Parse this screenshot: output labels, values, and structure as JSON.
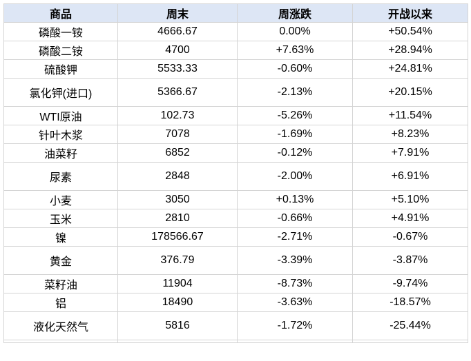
{
  "chart_data": {
    "type": "table",
    "columns": [
      "商品",
      "周末",
      "周涨跌",
      "开战以来"
    ],
    "rows": [
      {
        "name": "磷酸一铵",
        "close": "4666.67",
        "week": "0.00%",
        "since": "+50.54%"
      },
      {
        "name": "磷酸二铵",
        "close": "4700",
        "week": "+7.63%",
        "since": "+28.94%"
      },
      {
        "name": "硫酸钾",
        "close": "5533.33",
        "week": "-0.60%",
        "since": "+24.81%"
      },
      {
        "name": "氯化钾(进口)",
        "close": "5366.67",
        "week": "-2.13%",
        "since": "+20.15%"
      },
      {
        "name": "WTI原油",
        "close": "102.73",
        "week": "-5.26%",
        "since": "+11.54%"
      },
      {
        "name": "针叶木浆",
        "close": "7078",
        "week": "-1.69%",
        "since": "+8.23%"
      },
      {
        "name": "油菜籽",
        "close": "6852",
        "week": "-0.12%",
        "since": "+7.91%"
      },
      {
        "name": "尿素",
        "close": "2848",
        "week": "-2.00%",
        "since": "+6.91%"
      },
      {
        "name": "小麦",
        "close": "3050",
        "week": "+0.13%",
        "since": "+5.10%"
      },
      {
        "name": "玉米",
        "close": "2810",
        "week": "-0.66%",
        "since": "+4.91%"
      },
      {
        "name": "镍",
        "close": "178566.67",
        "week": "-2.71%",
        "since": "-0.67%"
      },
      {
        "name": "黄金",
        "close": "376.79",
        "week": "-3.39%",
        "since": "-3.87%"
      },
      {
        "name": "菜籽油",
        "close": "11904",
        "week": "-8.73%",
        "since": "-9.74%"
      },
      {
        "name": "铝",
        "close": "18490",
        "week": "-3.63%",
        "since": "-18.57%"
      },
      {
        "name": "液化天然气",
        "close": "5816",
        "week": "-1.72%",
        "since": "-25.44%"
      }
    ]
  },
  "colors": {
    "up": "#ff0000",
    "down": "#008000",
    "header_bg": "#dde6f5",
    "border": "#d4d4d4"
  }
}
